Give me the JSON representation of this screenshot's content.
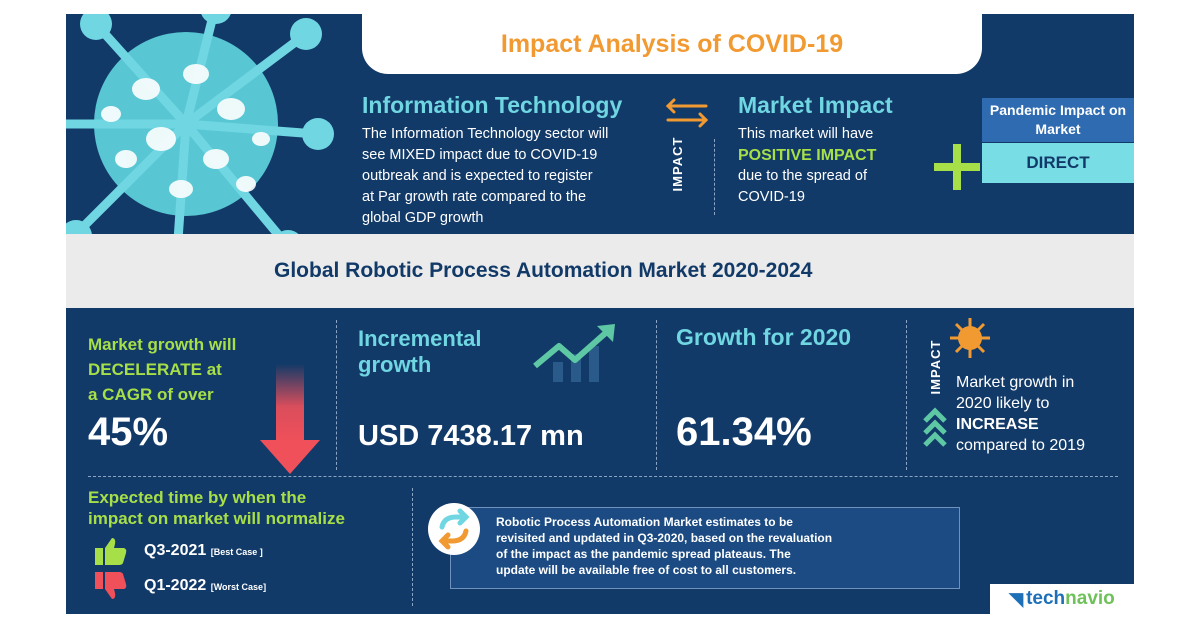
{
  "header": {
    "title": "Impact Analysis of COVID-19"
  },
  "it_sector": {
    "heading": "Information Technology",
    "lines": [
      "The Information Technology sector will",
      "see MIXED  impact due to COVID-19",
      "outbreak and is expected to register",
      "at Par growth rate compared to the",
      "global GDP growth"
    ]
  },
  "impact_label": "IMPACT",
  "market_impact": {
    "heading": "Market Impact",
    "line1": "This market will have",
    "highlight": "POSITIVE IMPACT",
    "line3": "due to the spread of",
    "line4": "COVID-19"
  },
  "pandemic_impact": {
    "heading": "Pandemic Impact on Market",
    "value": "DIRECT"
  },
  "band": {
    "title": "Global Robotic Process Automation Market 2020-2024"
  },
  "market_growth": {
    "lines": [
      "Market growth will",
      "DECELERATE at",
      "a CAGR of over"
    ],
    "value": "45%"
  },
  "incremental": {
    "lines": [
      "Incremental",
      "growth"
    ],
    "value": "USD 7438.17 mn"
  },
  "growth_2020": {
    "label": "Growth for 2020",
    "value": "61.34%"
  },
  "growth_impact": {
    "label": "IMPACT",
    "line1": "Market growth in",
    "line2": "2020 likely to",
    "highlight": "INCREASE",
    "line4": "compared to 2019"
  },
  "normalize": {
    "heading_lines": [
      "Expected time by when the",
      "impact on market will normalize"
    ],
    "best": {
      "date": "Q3-2021",
      "tag": "[Best Case ]"
    },
    "worst": {
      "date": "Q1-2022",
      "tag": "[Worst Case]"
    }
  },
  "note": {
    "lines": [
      "Robotic Process Automation Market estimates to be",
      "revisited and updated in Q3-2020, based on the revaluation",
      "of the impact as the pandemic spread plateaus. The",
      "update will be available free of cost to all customers."
    ]
  },
  "logo": {
    "part1": "tech",
    "part2": "navio"
  },
  "colors": {
    "panel": "#123a68",
    "accent_orange": "#f29a32",
    "accent_cyan": "#6fd6e2",
    "accent_green": "#a7df48",
    "arrow_red": "#f0505a"
  }
}
